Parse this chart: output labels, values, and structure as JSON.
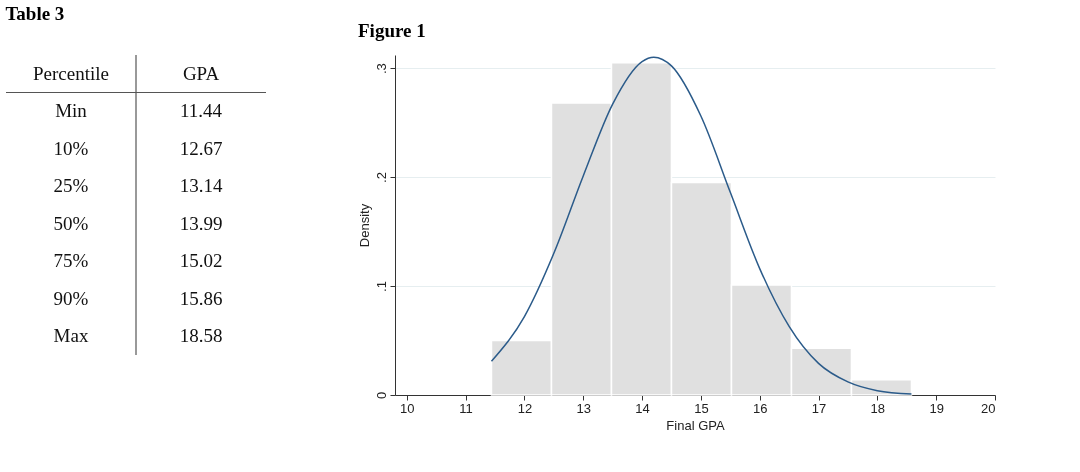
{
  "chart_data": [
    {
      "type": "other",
      "title": "Table 3",
      "annotations": [
        "Percentile",
        "GPA"
      ],
      "categories": [
        "Min",
        "10%",
        "25%",
        "50%",
        "75%",
        "90%",
        "Max"
      ],
      "values": [
        11.44,
        12.67,
        13.14,
        13.99,
        15.02,
        15.86,
        18.58
      ],
      "data_labels": true
    },
    {
      "type": "histogram",
      "title": "Figure 1",
      "xlabel": "Final GPA",
      "ylabel": "Density",
      "bins": [
        11.44,
        12.46,
        13.48,
        14.5,
        15.52,
        16.54,
        17.56,
        18.58
      ],
      "values": [
        0.05,
        0.268,
        0.305,
        0.195,
        0.101,
        0.043,
        0.014
      ],
      "color": "#e0e0e0",
      "series": [
        {
          "type": "line",
          "color": "#2b5b8a",
          "x": [
            11.44,
            12,
            12.5,
            13,
            13.5,
            14,
            14.2,
            14.5,
            15,
            15.5,
            16,
            16.5,
            17,
            17.5,
            18,
            18.58
          ],
          "values": [
            0.031,
            0.072,
            0.13,
            0.201,
            0.267,
            0.306,
            0.31,
            0.302,
            0.256,
            0.186,
            0.116,
            0.063,
            0.029,
            0.012,
            0.004,
            0.001
          ]
        }
      ],
      "xlim": [
        9.8,
        20
      ],
      "xticks": [
        10,
        11,
        12,
        13,
        14,
        15,
        16,
        17,
        18,
        19,
        20
      ],
      "ylim": [
        0,
        0.312
      ],
      "yticks": [
        0,
        {
          "value": 0.1,
          "label": ".1"
        },
        {
          "value": 0.2,
          "label": ".2"
        },
        {
          "value": 0.3,
          "label": ".3"
        }
      ],
      "grid": "y"
    }
  ]
}
